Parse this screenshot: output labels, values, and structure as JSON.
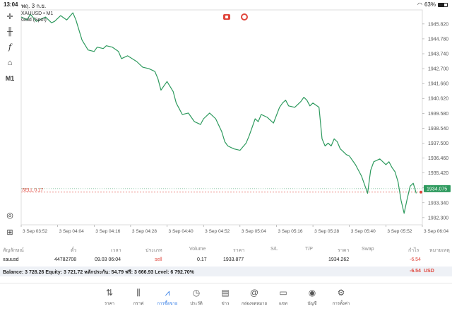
{
  "status": {
    "time": "13:04",
    "date": "พฤ. 3 ก.ย.",
    "battery": "63%",
    "battery_level": 0.63
  },
  "toolbar": {
    "timeframe_label": "M1"
  },
  "chart": {
    "symbol_line": "XAUUSD • M1",
    "subtitle": "Gold (Spot)",
    "sell_label": "SELL 0.17",
    "current_price_label": "1934.075",
    "colors": {
      "line": "#2e9a5e",
      "sell": "#e0463c",
      "price_tag": "#2e9a5e"
    }
  },
  "chart_data": {
    "type": "line",
    "y_ticks": [
      "1945.820",
      "1944.780",
      "1943.740",
      "1942.700",
      "1941.660",
      "1940.620",
      "1939.580",
      "1938.540",
      "1937.500",
      "1936.460",
      "1935.420",
      "1934.380",
      "1933.340",
      "1932.300"
    ],
    "x_ticks": [
      "3 Sep 03:52",
      "3 Sep 04:04",
      "3 Sep 04:16",
      "3 Sep 04:28",
      "3 Sep 04:40",
      "3 Sep 04:52",
      "3 Sep 05:04",
      "3 Sep 05:16",
      "3 Sep 05:28",
      "3 Sep 05:40",
      "3 Sep 05:52",
      "3 Sep 06:04"
    ],
    "ylim": [
      1931.8,
      1946.8
    ],
    "x_range_minutes": [
      0,
      132
    ],
    "sell_level": 1934.08,
    "current_price": 1934.075,
    "series": [
      {
        "x": [
          0,
          2,
          3,
          5,
          8,
          10,
          11,
          13,
          15,
          17,
          18,
          20,
          22,
          24,
          25,
          27,
          28,
          30,
          32,
          33,
          35,
          38,
          40,
          42,
          44,
          45,
          46,
          48,
          50,
          51,
          53,
          55,
          57,
          59,
          60,
          62,
          64,
          66,
          67,
          68,
          70,
          72,
          74,
          75,
          77,
          78,
          79,
          81,
          83,
          85,
          86,
          87,
          88,
          90,
          91,
          92,
          93,
          94,
          95,
          96,
          98,
          99,
          100,
          101,
          102,
          103,
          104,
          105,
          106,
          107,
          108,
          110,
          112,
          114,
          115,
          116,
          118,
          120,
          121,
          122,
          123,
          124,
          125,
          126,
          127,
          128,
          129,
          130
        ],
        "y": [
          1946.3,
          1946.1,
          1946.5,
          1946.0,
          1946.3,
          1945.9,
          1946.0,
          1946.4,
          1946.1,
          1946.6,
          1946.1,
          1944.7,
          1944.0,
          1943.9,
          1944.2,
          1944.1,
          1944.3,
          1944.2,
          1943.9,
          1943.4,
          1943.6,
          1943.2,
          1942.8,
          1942.7,
          1942.5,
          1942.0,
          1941.2,
          1941.8,
          1941.1,
          1940.3,
          1939.5,
          1939.6,
          1939.0,
          1938.8,
          1939.2,
          1939.6,
          1939.2,
          1938.3,
          1937.6,
          1937.3,
          1937.1,
          1937.0,
          1937.5,
          1938.0,
          1939.2,
          1939.0,
          1939.5,
          1939.3,
          1938.9,
          1940.0,
          1940.3,
          1940.5,
          1940.1,
          1940.0,
          1940.2,
          1940.4,
          1940.7,
          1940.5,
          1940.1,
          1940.3,
          1940.0,
          1937.8,
          1937.3,
          1937.5,
          1937.3,
          1937.8,
          1937.6,
          1937.1,
          1936.9,
          1936.7,
          1936.6,
          1936.0,
          1935.2,
          1934.0,
          1935.6,
          1936.2,
          1936.4,
          1936.0,
          1936.2,
          1935.8,
          1935.5,
          1934.8,
          1933.5,
          1932.6,
          1933.6,
          1934.5,
          1934.7,
          1934.0
        ]
      }
    ]
  },
  "trade_table": {
    "headers": [
      "สัญลักษณ์",
      "ตั๋ว",
      "เวลา",
      "ประเภท",
      "Volume",
      "ราคา",
      "S/L",
      "T/P",
      "ราคา",
      "Swap",
      "กำไร",
      "หมายเหตุ"
    ],
    "row": {
      "symbol": "xauusd",
      "ticket": "44782708",
      "time": "09.03 06:04",
      "type": "sell",
      "volume": "0.17",
      "open_price": "1933.877",
      "sl": "",
      "tp": "",
      "price": "1934.262",
      "swap": "",
      "profit": "-6.54",
      "comment": ""
    }
  },
  "balance": {
    "text": "Balance: 3 728.26 Equity: 3 721.72 หลักประกัน: 54.79 ฟรี: 3 666.93 Level: 6 792.70%",
    "profit": "-6.54",
    "currency": "USD"
  },
  "bottom_nav": [
    {
      "label": "ราคา",
      "icon": "quotes-icon"
    },
    {
      "label": "กราฟ",
      "icon": "chart-icon"
    },
    {
      "label": "การซื้อขาย",
      "icon": "trade-icon",
      "active": true
    },
    {
      "label": "ประวัติ",
      "icon": "history-icon"
    },
    {
      "label": "ข่าว",
      "icon": "news-icon"
    },
    {
      "label": "กล่องจดหมาย",
      "icon": "mailbox-icon"
    },
    {
      "label": "แชท",
      "icon": "chat-icon"
    },
    {
      "label": "บัญชี",
      "icon": "account-icon"
    },
    {
      "label": "การตั้งค่า",
      "icon": "settings-icon"
    }
  ]
}
